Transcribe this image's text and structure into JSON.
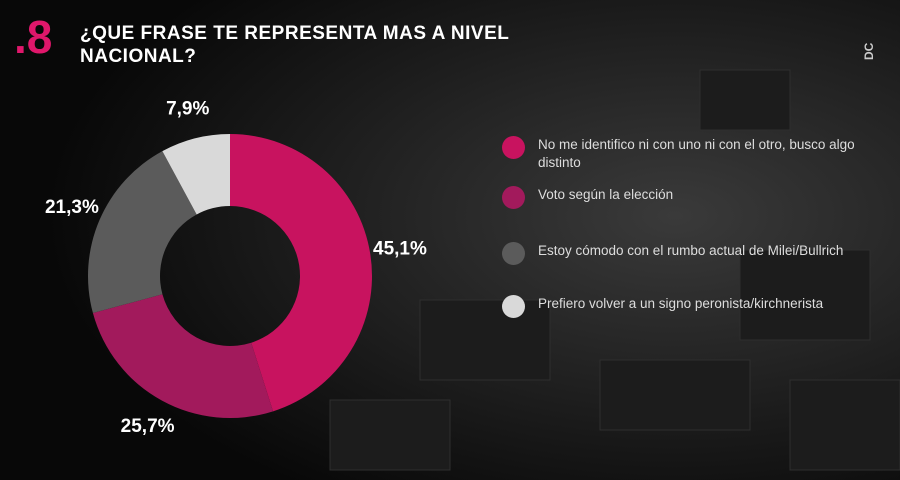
{
  "question_number": ".8",
  "brand": "DC",
  "chart_data": {
    "type": "donut",
    "title": "¿QUE FRASE TE REPRESENTA MAS A NIVEL NACIONAL?",
    "categories": [
      "No me identifico ni con uno ni con el otro, busco algo distinto",
      "Voto según la elección",
      "Estoy cómodo con el rumbo actual de Milei/Bullrich",
      "Prefiero volver a un signo peronista/kirchnerista"
    ],
    "values": [
      45.1,
      25.7,
      21.3,
      7.9
    ],
    "value_labels": [
      "45,1%",
      "25,7%",
      "21,3%",
      "7,9%"
    ],
    "colors": [
      "#c8135f",
      "#a21a5c",
      "#5b5b5b",
      "#d9d9d9"
    ],
    "legend": "right"
  }
}
